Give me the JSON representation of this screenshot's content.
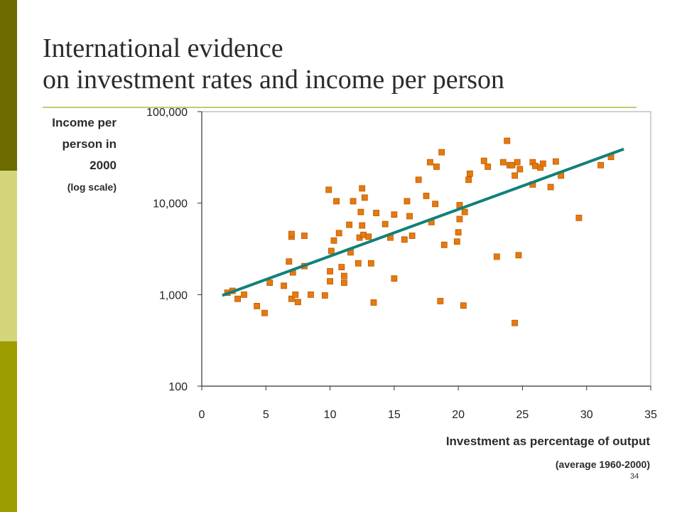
{
  "slide": {
    "title_line1": "International evidence",
    "title_line2": "on investment rates and income per person",
    "page_number": "34"
  },
  "chart_data": {
    "type": "scatter",
    "title": "",
    "ylabel_lines": [
      "Income per",
      "person in",
      "2000"
    ],
    "ylabel_note": "(log scale)",
    "xlabel": "Investment as percentage of output",
    "xlabel_note": "(average 1960-2000)",
    "xlim": [
      0,
      35
    ],
    "ylim": [
      100,
      100000
    ],
    "yscale": "log",
    "x_ticks": [
      "0",
      "5",
      "10",
      "15",
      "20",
      "25",
      "30",
      "35"
    ],
    "y_ticks": [
      "100",
      "1,000",
      "10,000",
      "100,000"
    ],
    "y_tick_values": [
      100,
      1000,
      10000,
      100000
    ],
    "x_tick_values": [
      0,
      5,
      10,
      15,
      20,
      25,
      30,
      35
    ],
    "marker_color": "#e8790c",
    "marker_edge_color": "#b85a00",
    "trend_color": "#12807a",
    "points": [
      [
        2.0,
        1050
      ],
      [
        2.4,
        1100
      ],
      [
        2.8,
        900
      ],
      [
        3.3,
        1000
      ],
      [
        4.3,
        750
      ],
      [
        4.9,
        630
      ],
      [
        5.3,
        1350
      ],
      [
        6.4,
        1250
      ],
      [
        6.8,
        2300
      ],
      [
        7.0,
        4300
      ],
      [
        7.0,
        4600
      ],
      [
        7.0,
        900
      ],
      [
        7.1,
        1750
      ],
      [
        7.3,
        1000
      ],
      [
        7.5,
        830
      ],
      [
        8.0,
        2050
      ],
      [
        8.0,
        4400
      ],
      [
        8.5,
        1000
      ],
      [
        9.6,
        980
      ],
      [
        9.9,
        14000
      ],
      [
        10.0,
        1800
      ],
      [
        10.0,
        1400
      ],
      [
        10.1,
        3000
      ],
      [
        10.3,
        3900
      ],
      [
        10.5,
        10500
      ],
      [
        10.7,
        4700
      ],
      [
        10.9,
        2000
      ],
      [
        11.1,
        1600
      ],
      [
        11.1,
        1350
      ],
      [
        11.5,
        5800
      ],
      [
        11.6,
        2900
      ],
      [
        11.8,
        10500
      ],
      [
        12.2,
        2200
      ],
      [
        12.3,
        4200
      ],
      [
        12.4,
        8000
      ],
      [
        12.5,
        5700
      ],
      [
        12.6,
        4500
      ],
      [
        12.7,
        11500
      ],
      [
        12.5,
        14500
      ],
      [
        13.0,
        4300
      ],
      [
        13.2,
        2200
      ],
      [
        13.4,
        820
      ],
      [
        13.6,
        7800
      ],
      [
        14.3,
        5900
      ],
      [
        14.7,
        4200
      ],
      [
        15.0,
        7500
      ],
      [
        15.0,
        1500
      ],
      [
        15.8,
        4000
      ],
      [
        16.0,
        10500
      ],
      [
        16.2,
        7200
      ],
      [
        16.4,
        4400
      ],
      [
        16.9,
        18000
      ],
      [
        17.5,
        12000
      ],
      [
        17.8,
        28000
      ],
      [
        17.9,
        6200
      ],
      [
        18.2,
        9800
      ],
      [
        18.3,
        25000
      ],
      [
        18.6,
        850
      ],
      [
        18.7,
        36000
      ],
      [
        18.9,
        3500
      ],
      [
        19.9,
        3800
      ],
      [
        20.0,
        4800
      ],
      [
        20.1,
        6700
      ],
      [
        20.1,
        9500
      ],
      [
        20.4,
        760
      ],
      [
        20.5,
        8000
      ],
      [
        20.8,
        18000
      ],
      [
        20.9,
        21000
      ],
      [
        22.0,
        29000
      ],
      [
        22.3,
        25000
      ],
      [
        23.0,
        2600
      ],
      [
        23.5,
        28000
      ],
      [
        23.8,
        48000
      ],
      [
        24.0,
        26000
      ],
      [
        24.2,
        26000
      ],
      [
        24.4,
        20000
      ],
      [
        24.4,
        490
      ],
      [
        24.6,
        28000
      ],
      [
        24.8,
        23500
      ],
      [
        24.7,
        2700
      ],
      [
        25.8,
        16000
      ],
      [
        25.8,
        28000
      ],
      [
        26.0,
        25500
      ],
      [
        26.4,
        24500
      ],
      [
        26.6,
        27000
      ],
      [
        27.2,
        15000
      ],
      [
        27.6,
        28500
      ],
      [
        28.0,
        20000
      ],
      [
        29.4,
        6900
      ],
      [
        31.1,
        26000
      ],
      [
        31.9,
        32000
      ]
    ],
    "trend_line": [
      [
        1.6,
        980
      ],
      [
        32.9,
        39000
      ]
    ]
  }
}
